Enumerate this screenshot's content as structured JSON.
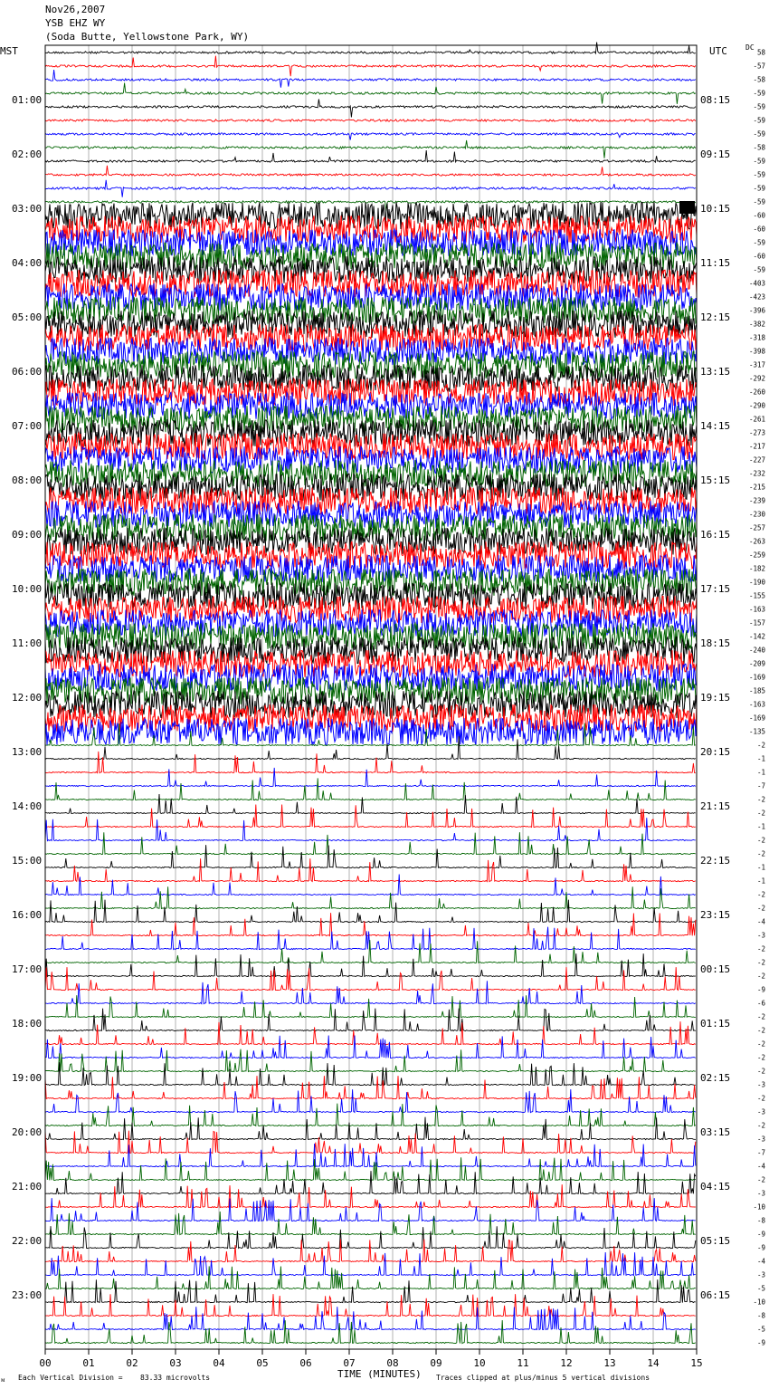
{
  "header": {
    "date": "Nov26,2007",
    "station": "YSB EHZ WY",
    "location": "(Soda Butte, Yellowstone Park, WY)"
  },
  "labels": {
    "left_tz": "MST",
    "right_tz": "UTC",
    "dc": "DC",
    "time_axis": "TIME (MINUTES)",
    "footer_left": "Each Vertical Division =",
    "footer_value": "83.33 microvolts",
    "footer_right": "Traces clipped at plus/minus 5 vertical divisions",
    "corner_mark": "ᴍ"
  },
  "colors": {
    "trace_cycle": [
      "#000000",
      "#ff0000",
      "#0000ff",
      "#006400"
    ],
    "grid": "#a0a0a0",
    "box": "#000000"
  },
  "chart_data": {
    "type": "helicorder",
    "x_axis": {
      "label": "TIME (MINUTES)",
      "range": [
        0,
        15
      ],
      "ticks": [
        "00",
        "01",
        "02",
        "03",
        "04",
        "05",
        "06",
        "07",
        "08",
        "09",
        "10",
        "11",
        "12",
        "13",
        "14",
        "15"
      ]
    },
    "rows_per_hour": 4,
    "total_rows": 96,
    "mst_labels": [
      "01:00",
      "02:00",
      "03:00",
      "04:00",
      "05:00",
      "06:00",
      "07:00",
      "08:00",
      "09:00",
      "10:00",
      "11:00",
      "12:00",
      "13:00",
      "14:00",
      "15:00",
      "16:00",
      "17:00",
      "18:00",
      "19:00",
      "20:00",
      "21:00",
      "22:00",
      "23:00"
    ],
    "utc_labels": [
      "08:15",
      "09:15",
      "10:15",
      "11:15",
      "12:15",
      "13:15",
      "14:15",
      "15:15",
      "16:15",
      "17:15",
      "18:15",
      "19:15",
      "20:15",
      "21:15",
      "22:15",
      "23:15",
      "00:15",
      "01:15",
      "02:15",
      "03:15",
      "04:15",
      "05:15",
      "06:15"
    ],
    "dc_offsets": [
      "58",
      "-57",
      "-58",
      "-59",
      "-59",
      "-59",
      "-59",
      "-58",
      "-59",
      "-59",
      "-59",
      "-59",
      "-60",
      "-60",
      "-59",
      "-60",
      "-59",
      "-403",
      "-423",
      "-396",
      "-382",
      "-318",
      "-398",
      "-317",
      "-292",
      "-260",
      "-290",
      "-261",
      "-273",
      "-217",
      "-227",
      "-232",
      "-215",
      "-239",
      "-230",
      "-257",
      "-263",
      "-259",
      "-182",
      "-190",
      "-155",
      "-163",
      "-157",
      "-142",
      "-240",
      "-209",
      "-169",
      "-185",
      "-163",
      "-169",
      "-135",
      "-2",
      "-1",
      "-1",
      "-7",
      "-2",
      "-2",
      "-1",
      "-2",
      "-2",
      "-1",
      "-1",
      "-2",
      "-2",
      "-4",
      "-3",
      "-2",
      "-2",
      "-2",
      "-9",
      "-6",
      "-2",
      "-2",
      "-2",
      "-2",
      "-2",
      "-3",
      "-2",
      "-3",
      "-2",
      "-3",
      "-7",
      "-4",
      "-2",
      "-3",
      "-10",
      "-8",
      "-9",
      "-9",
      "-4",
      "-3",
      "-5",
      "-10",
      "-8",
      "-5",
      "-9"
    ],
    "activity_by_segment": [
      {
        "rows": [
          0,
          12
        ],
        "level": "quiet"
      },
      {
        "rows": [
          12,
          51
        ],
        "level": "clipped"
      },
      {
        "rows": [
          51,
          96
        ],
        "level": "spiky"
      }
    ]
  }
}
